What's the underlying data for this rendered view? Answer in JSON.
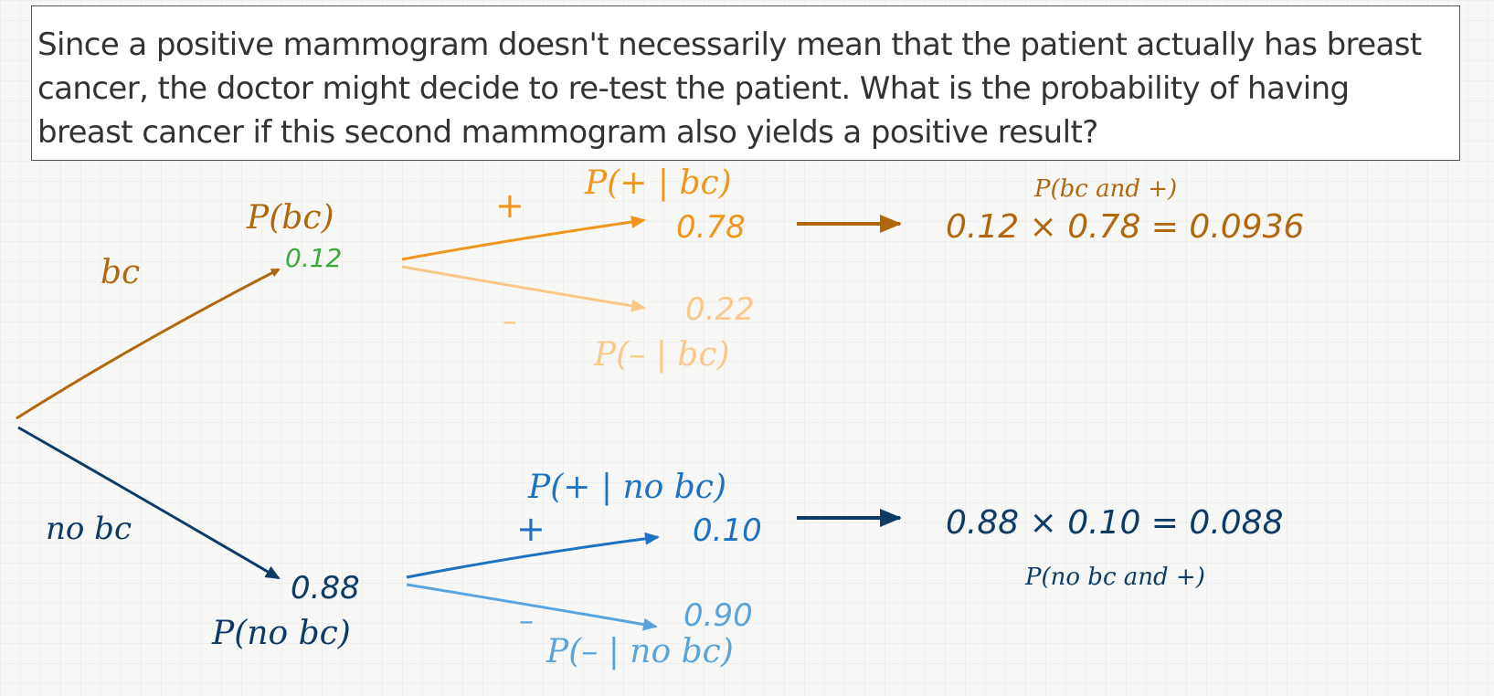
{
  "question": "Since a positive mammogram doesn't necessarily mean that the patient actually has breast cancer, the doctor might decide to re-test the patient. What is the probability of having breast cancer if this second mammogram also yields a positive result?",
  "tree": {
    "bc_branch": {
      "label": "bc",
      "prob_label": "P(bc)",
      "prob": "0.12",
      "pos": {
        "sign": "+",
        "prob_label": "P(+ | bc)",
        "prob": "0.78"
      },
      "neg": {
        "sign": "–",
        "prob_label": "P(– | bc)",
        "prob": "0.22"
      },
      "result_label": "P(bc and +)",
      "result": "0.12 × 0.78 = 0.0936"
    },
    "nobc_branch": {
      "label": "no bc",
      "prob_label": "P(no bc)",
      "prob": "0.88",
      "pos": {
        "sign": "+",
        "prob_label": "P(+ | no bc)",
        "prob": "0.10"
      },
      "neg": {
        "sign": "–",
        "prob_label": "P(– | no bc)",
        "prob": "0.90"
      },
      "result_label": "P(no bc and +)",
      "result": "0.88 × 0.10 = 0.088"
    }
  },
  "colors": {
    "bc": "#b0670f",
    "bc_pos": "#f0961e",
    "bc_neg": "#f8c98a",
    "bc_prior": "#3aaa3a",
    "nobc": "#0d3b66",
    "nobc_pos": "#1f72c2",
    "nobc_neg": "#5ba4da"
  }
}
